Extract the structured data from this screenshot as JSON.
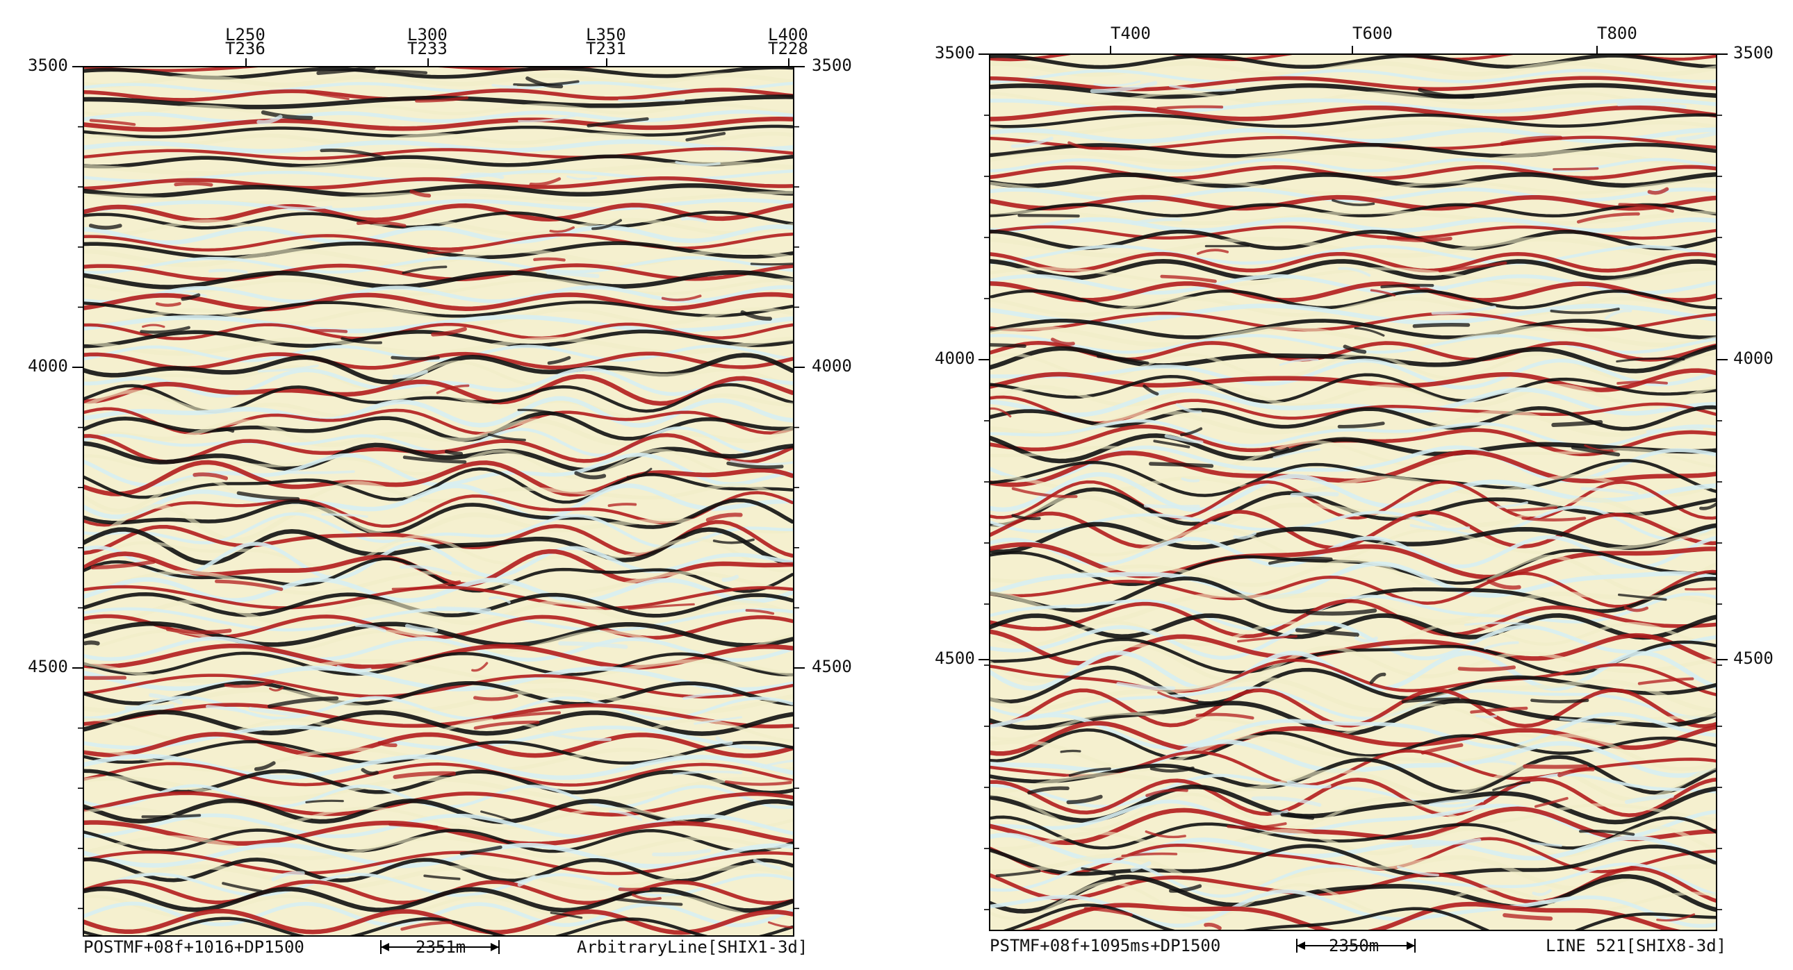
{
  "colors": {
    "positive": "#b31d1d",
    "negative": "#111111",
    "mid": "#f0ecc7",
    "highlight": "#d7eef2",
    "background": "#ffffff"
  },
  "panels": [
    {
      "id": "left",
      "time_ticks": [
        "3500",
        "4000",
        "4500"
      ],
      "right_time_ticks": [
        "3500",
        "4000",
        "4500"
      ],
      "top_labels": [
        {
          "line1": "L250",
          "line2": "T236"
        },
        {
          "line1": "L300",
          "line2": "T233"
        },
        {
          "line1": "L350",
          "line2": "T231"
        },
        {
          "line1": "L400",
          "line2": "T228"
        }
      ],
      "footer_left": "POSTMF+08f+1016+DP1500",
      "footer_scale": "2351m",
      "footer_right": "ArbitraryLine[SHIX1-3d]"
    },
    {
      "id": "right",
      "time_ticks": [
        "3500",
        "4000",
        "4500"
      ],
      "right_time_ticks": [
        "3500",
        "4000",
        "4500"
      ],
      "top_labels": [
        {
          "line1": "T400"
        },
        {
          "line1": "T600"
        },
        {
          "line1": "T800"
        }
      ],
      "footer_left": "PSTMF+08f+1095ms+DP1500",
      "footer_scale": "2350m",
      "footer_right": "LINE 521[SHIX8-3d]"
    }
  ]
}
